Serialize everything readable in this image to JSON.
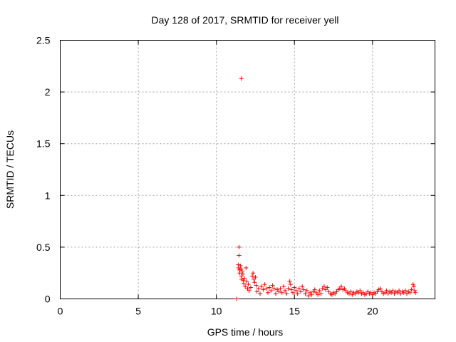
{
  "chart_data": {
    "type": "scatter",
    "title": "Day 128 of 2017, SRMTID for receiver yell",
    "xlabel": "GPS time / hours",
    "ylabel": "SRMTID / TECUs",
    "xlim": [
      0,
      24
    ],
    "ylim": [
      0,
      2.5
    ],
    "x_ticks": [
      0,
      5,
      10,
      15,
      20
    ],
    "x_tick_labels": [
      "0",
      "5",
      "10",
      "15",
      "20"
    ],
    "y_ticks": [
      0,
      0.5,
      1,
      1.5,
      2,
      2.5
    ],
    "y_tick_labels": [
      "0",
      "0.5",
      "1",
      "1.5",
      "2",
      "2.5"
    ],
    "grid": true,
    "series": [
      {
        "name": "SRMTID",
        "marker": "+",
        "color": "#ff0000",
        "points": [
          [
            11.3,
            0.0
          ],
          [
            11.6,
            2.13
          ],
          [
            11.45,
            0.5
          ],
          [
            11.45,
            0.42
          ],
          [
            11.4,
            0.33
          ],
          [
            11.42,
            0.3
          ],
          [
            11.48,
            0.28
          ],
          [
            11.5,
            0.25
          ],
          [
            11.55,
            0.32
          ],
          [
            11.58,
            0.29
          ],
          [
            11.6,
            0.22
          ],
          [
            11.62,
            0.19
          ],
          [
            11.65,
            0.27
          ],
          [
            11.7,
            0.24
          ],
          [
            11.72,
            0.18
          ],
          [
            11.75,
            0.15
          ],
          [
            11.8,
            0.2
          ],
          [
            11.85,
            0.12
          ],
          [
            11.9,
            0.3
          ],
          [
            11.95,
            0.17
          ],
          [
            12.0,
            0.1
          ],
          [
            12.05,
            0.14
          ],
          [
            12.1,
            0.08
          ],
          [
            12.2,
            0.11
          ],
          [
            12.3,
            0.22
          ],
          [
            12.35,
            0.25
          ],
          [
            12.4,
            0.19
          ],
          [
            12.45,
            0.16
          ],
          [
            12.5,
            0.21
          ],
          [
            12.55,
            0.13
          ],
          [
            12.6,
            0.07
          ],
          [
            12.7,
            0.1
          ],
          [
            12.8,
            0.05
          ],
          [
            12.9,
            0.12
          ],
          [
            13.0,
            0.09
          ],
          [
            13.1,
            0.14
          ],
          [
            13.2,
            0.1
          ],
          [
            13.3,
            0.06
          ],
          [
            13.4,
            0.11
          ],
          [
            13.5,
            0.08
          ],
          [
            13.6,
            0.13
          ],
          [
            13.7,
            0.1
          ],
          [
            13.8,
            0.05
          ],
          [
            13.9,
            0.09
          ],
          [
            14.0,
            0.07
          ],
          [
            14.1,
            0.1
          ],
          [
            14.2,
            0.06
          ],
          [
            14.3,
            0.12
          ],
          [
            14.4,
            0.08
          ],
          [
            14.5,
            0.05
          ],
          [
            14.6,
            0.1
          ],
          [
            14.7,
            0.17
          ],
          [
            14.75,
            0.14
          ],
          [
            14.8,
            0.09
          ],
          [
            14.9,
            0.06
          ],
          [
            15.0,
            0.11
          ],
          [
            15.1,
            0.08
          ],
          [
            15.2,
            0.05
          ],
          [
            15.3,
            0.1
          ],
          [
            15.4,
            0.07
          ],
          [
            15.5,
            0.12
          ],
          [
            15.6,
            0.09
          ],
          [
            15.7,
            0.05
          ],
          [
            15.8,
            0.08
          ],
          [
            15.9,
            0.03
          ],
          [
            16.0,
            0.06
          ],
          [
            16.1,
            0.04
          ],
          [
            16.2,
            0.07
          ],
          [
            16.3,
            0.09
          ],
          [
            16.4,
            0.06
          ],
          [
            16.5,
            0.04
          ],
          [
            16.6,
            0.08
          ],
          [
            16.7,
            0.05
          ],
          [
            16.8,
            0.1
          ],
          [
            16.9,
            0.12
          ],
          [
            17.0,
            0.09
          ],
          [
            17.1,
            0.11
          ],
          [
            17.2,
            0.07
          ],
          [
            17.3,
            0.05
          ],
          [
            17.4,
            0.04
          ],
          [
            17.5,
            0.06
          ],
          [
            17.6,
            0.05
          ],
          [
            17.7,
            0.07
          ],
          [
            17.8,
            0.09
          ],
          [
            17.9,
            0.1
          ],
          [
            18.0,
            0.12
          ],
          [
            18.1,
            0.09
          ],
          [
            18.2,
            0.1
          ],
          [
            18.3,
            0.08
          ],
          [
            18.4,
            0.06
          ],
          [
            18.5,
            0.05
          ],
          [
            18.6,
            0.07
          ],
          [
            18.7,
            0.04
          ],
          [
            18.8,
            0.06
          ],
          [
            18.9,
            0.05
          ],
          [
            19.0,
            0.07
          ],
          [
            19.1,
            0.06
          ],
          [
            19.2,
            0.08
          ],
          [
            19.3,
            0.05
          ],
          [
            19.4,
            0.06
          ],
          [
            19.5,
            0.04
          ],
          [
            19.6,
            0.05
          ],
          [
            19.7,
            0.07
          ],
          [
            19.8,
            0.05
          ],
          [
            19.9,
            0.06
          ],
          [
            20.0,
            0.04
          ],
          [
            20.1,
            0.06
          ],
          [
            20.2,
            0.05
          ],
          [
            20.3,
            0.07
          ],
          [
            20.4,
            0.09
          ],
          [
            20.5,
            0.1
          ],
          [
            20.6,
            0.07
          ],
          [
            20.7,
            0.05
          ],
          [
            20.8,
            0.06
          ],
          [
            20.9,
            0.08
          ],
          [
            21.0,
            0.05
          ],
          [
            21.1,
            0.07
          ],
          [
            21.2,
            0.06
          ],
          [
            21.3,
            0.08
          ],
          [
            21.4,
            0.05
          ],
          [
            21.5,
            0.07
          ],
          [
            21.6,
            0.06
          ],
          [
            21.7,
            0.08
          ],
          [
            21.8,
            0.05
          ],
          [
            21.9,
            0.07
          ],
          [
            22.0,
            0.06
          ],
          [
            22.1,
            0.08
          ],
          [
            22.2,
            0.05
          ],
          [
            22.3,
            0.07
          ],
          [
            22.4,
            0.06
          ],
          [
            22.5,
            0.09
          ],
          [
            22.6,
            0.14
          ],
          [
            22.65,
            0.12
          ],
          [
            22.7,
            0.08
          ],
          [
            22.75,
            0.06
          ]
        ]
      }
    ]
  }
}
